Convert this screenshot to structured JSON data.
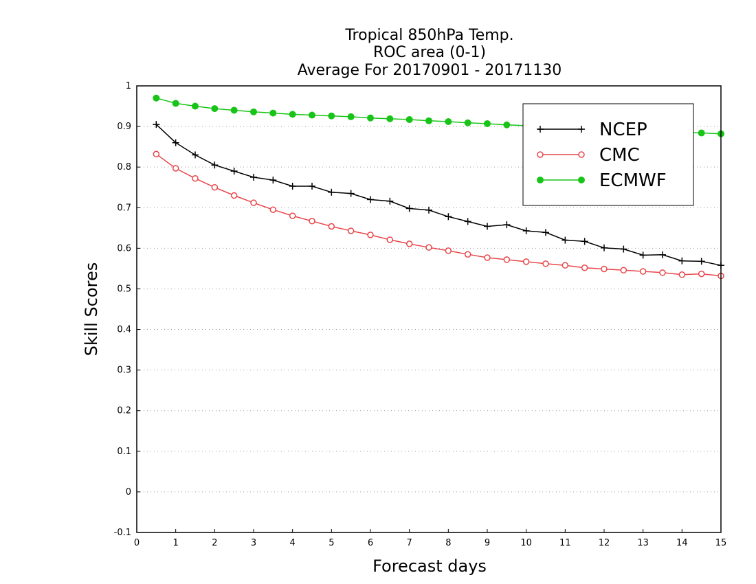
{
  "chart_data": {
    "type": "line",
    "title": [
      "Tropical 850hPa Temp.",
      "ROC area (0-1)",
      "Average For 20170901 - 20171130"
    ],
    "xlabel": "Forecast days",
    "ylabel": "Skill Scores",
    "xlim": [
      0,
      15
    ],
    "ylim": [
      -0.1,
      1
    ],
    "x_ticks": [
      "0",
      "1",
      "2",
      "3",
      "4",
      "5",
      "6",
      "7",
      "8",
      "9",
      "10",
      "11",
      "12",
      "13",
      "14",
      "15"
    ],
    "y_ticks": [
      "-0.1",
      "0",
      "0.1",
      "0.2",
      "0.3",
      "0.4",
      "0.5",
      "0.6",
      "0.7",
      "0.8",
      "0.9",
      "1"
    ],
    "grid": "horizontal dotted",
    "legend_position": "top-right",
    "x": [
      0.5,
      1,
      1.5,
      2,
      2.5,
      3,
      3.5,
      4,
      4.5,
      5,
      5.5,
      6,
      6.5,
      7,
      7.5,
      8,
      8.5,
      9,
      9.5,
      10,
      10.5,
      11,
      11.5,
      12,
      12.5,
      13,
      13.5,
      14,
      14.5,
      15
    ],
    "series": [
      {
        "name": "NCEP",
        "color": "#000000",
        "marker": "plus",
        "values": [
          0.905,
          0.86,
          0.83,
          0.805,
          0.79,
          0.775,
          0.768,
          0.753,
          0.753,
          0.738,
          0.735,
          0.72,
          0.716,
          0.698,
          0.694,
          0.678,
          0.666,
          0.654,
          0.658,
          0.643,
          0.639,
          0.62,
          0.617,
          0.601,
          0.598,
          0.583,
          0.584,
          0.569,
          0.568,
          0.558
        ]
      },
      {
        "name": "CMC",
        "color": "#e8454a",
        "marker": "open-circle",
        "values": [
          0.832,
          0.797,
          0.772,
          0.75,
          0.73,
          0.712,
          0.695,
          0.68,
          0.667,
          0.654,
          0.643,
          0.633,
          0.621,
          0.611,
          0.602,
          0.594,
          0.585,
          0.577,
          0.572,
          0.567,
          0.562,
          0.558,
          0.552,
          0.549,
          0.546,
          0.543,
          0.54,
          0.535,
          0.537,
          0.532
        ]
      },
      {
        "name": "ECMWF",
        "color": "#18c418",
        "marker": "filled-circle",
        "values": [
          0.97,
          0.957,
          0.95,
          0.944,
          0.94,
          0.936,
          0.933,
          0.93,
          0.928,
          0.926,
          0.924,
          0.921,
          0.919,
          0.917,
          0.914,
          0.912,
          0.909,
          0.907,
          0.904,
          0.902,
          0.899,
          0.897,
          0.895,
          0.893,
          0.891,
          0.889,
          0.887,
          0.886,
          0.884,
          0.882
        ]
      }
    ]
  }
}
